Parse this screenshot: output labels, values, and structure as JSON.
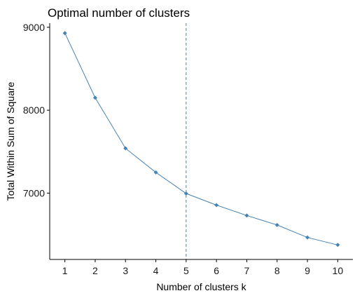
{
  "chart_data": {
    "type": "line",
    "title": "Optimal number of clusters",
    "xlabel": "Number of clusters k",
    "ylabel": "Total Within Sum of Square",
    "x": [
      1,
      2,
      3,
      4,
      5,
      6,
      7,
      8,
      9,
      10
    ],
    "series": [
      {
        "values": [
          8930,
          8150,
          7540,
          7250,
          6995,
          6855,
          6730,
          6615,
          6465,
          6375
        ]
      }
    ],
    "x_ticks": [
      "1",
      "2",
      "3",
      "4",
      "5",
      "6",
      "7",
      "8",
      "9",
      "10"
    ],
    "y_ticks": [
      7000,
      8000,
      9000
    ],
    "y_tick_labels": [
      "7000",
      "8000",
      "9000"
    ],
    "xlim": [
      0.5,
      10.5
    ],
    "ylim": [
      6200,
      9050
    ],
    "grid": false,
    "reference_line": {
      "x": 5,
      "style": "dashed"
    },
    "colors": {
      "series": "#4682b4",
      "reference_line": "#4682b4"
    }
  }
}
